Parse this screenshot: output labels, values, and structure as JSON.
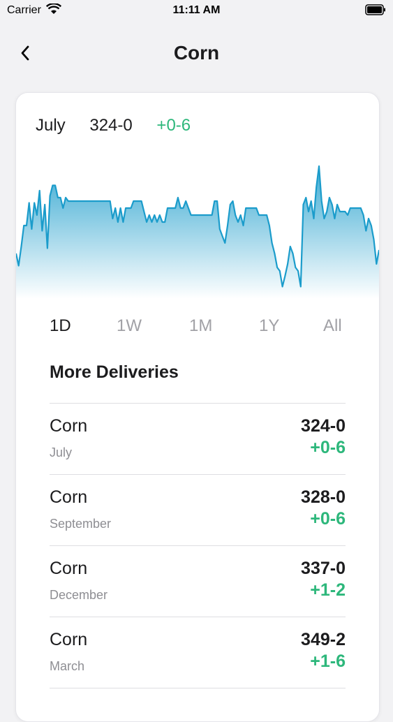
{
  "status_bar": {
    "carrier": "Carrier",
    "time": "11:11 AM"
  },
  "nav": {
    "title": "Corn",
    "back_icon": "chevron-left-icon"
  },
  "quote": {
    "month": "July",
    "price": "324-0",
    "change": "+0-6"
  },
  "chart_data": {
    "type": "area",
    "x": [
      0,
      1,
      2,
      3,
      4,
      5,
      6,
      7,
      8,
      9,
      10,
      11,
      12,
      13,
      14,
      15,
      16,
      17,
      18,
      19,
      20,
      21,
      22,
      23,
      24,
      25,
      26,
      27,
      28,
      29,
      30,
      31,
      32,
      33,
      34,
      35,
      36,
      37,
      38,
      39,
      40,
      41,
      42,
      43,
      44,
      45,
      46,
      47,
      48,
      49,
      50,
      51,
      52,
      53,
      54,
      55,
      56,
      57,
      58,
      59,
      60,
      61,
      62,
      63,
      64,
      65,
      66,
      67,
      68,
      69,
      70,
      71,
      72,
      73,
      74,
      75,
      76,
      77,
      78,
      79,
      80,
      81,
      82,
      83,
      84,
      85,
      86,
      87,
      88,
      89,
      90,
      91,
      92,
      93,
      94,
      95,
      96,
      97,
      98,
      99,
      100,
      101,
      102,
      103,
      104,
      105,
      106,
      107,
      108,
      109,
      110,
      111,
      112,
      113,
      114,
      115,
      116,
      117,
      118,
      119,
      120,
      121,
      122,
      123,
      124,
      125,
      126,
      127,
      128,
      129,
      130,
      131,
      132,
      133,
      134,
      135,
      136,
      137,
      138,
      139
    ],
    "y": [
      190,
      197,
      186,
      174,
      174,
      161,
      176,
      161,
      168,
      154,
      177,
      162,
      187,
      157,
      151,
      151,
      158,
      158,
      164,
      158,
      160,
      160,
      160,
      160,
      160,
      160,
      160,
      160,
      160,
      160,
      160,
      160,
      160,
      160,
      160,
      160,
      160,
      170,
      164,
      172,
      164,
      172,
      164,
      164,
      164,
      160,
      160,
      160,
      160,
      166,
      172,
      168,
      172,
      168,
      172,
      168,
      172,
      172,
      164,
      164,
      164,
      164,
      158,
      164,
      164,
      160,
      164,
      168,
      168,
      168,
      168,
      168,
      168,
      168,
      168,
      168,
      160,
      160,
      176,
      180,
      184,
      174,
      162,
      160,
      168,
      172,
      168,
      174,
      164,
      164,
      164,
      164,
      164,
      168,
      168,
      168,
      168,
      174,
      184,
      190,
      198,
      200,
      209,
      203,
      196,
      186,
      190,
      198,
      200,
      209,
      162,
      158,
      166,
      160,
      170,
      152,
      140,
      160,
      170,
      166,
      158,
      162,
      170,
      162,
      166,
      166,
      166,
      168,
      164,
      164,
      164,
      164,
      164,
      168,
      177,
      170,
      174,
      182,
      196,
      188
    ],
    "ylim": [
      140,
      210
    ],
    "ranges": [
      "1D",
      "1W",
      "1M",
      "1Y",
      "All"
    ],
    "selected_range": "1D",
    "line_color": "#1b9ccb"
  },
  "more_deliveries": {
    "title": "More Deliveries",
    "items": [
      {
        "name": "Corn",
        "month": "July",
        "price": "324-0",
        "change": "+0-6"
      },
      {
        "name": "Corn",
        "month": "September",
        "price": "328-0",
        "change": "+0-6"
      },
      {
        "name": "Corn",
        "month": "December",
        "price": "337-0",
        "change": "+1-2"
      },
      {
        "name": "Corn",
        "month": "March",
        "price": "349-2",
        "change": "+1-6"
      }
    ]
  },
  "colors": {
    "positive": "#2db77b",
    "background": "#f2f2f4",
    "card": "#ffffff"
  }
}
